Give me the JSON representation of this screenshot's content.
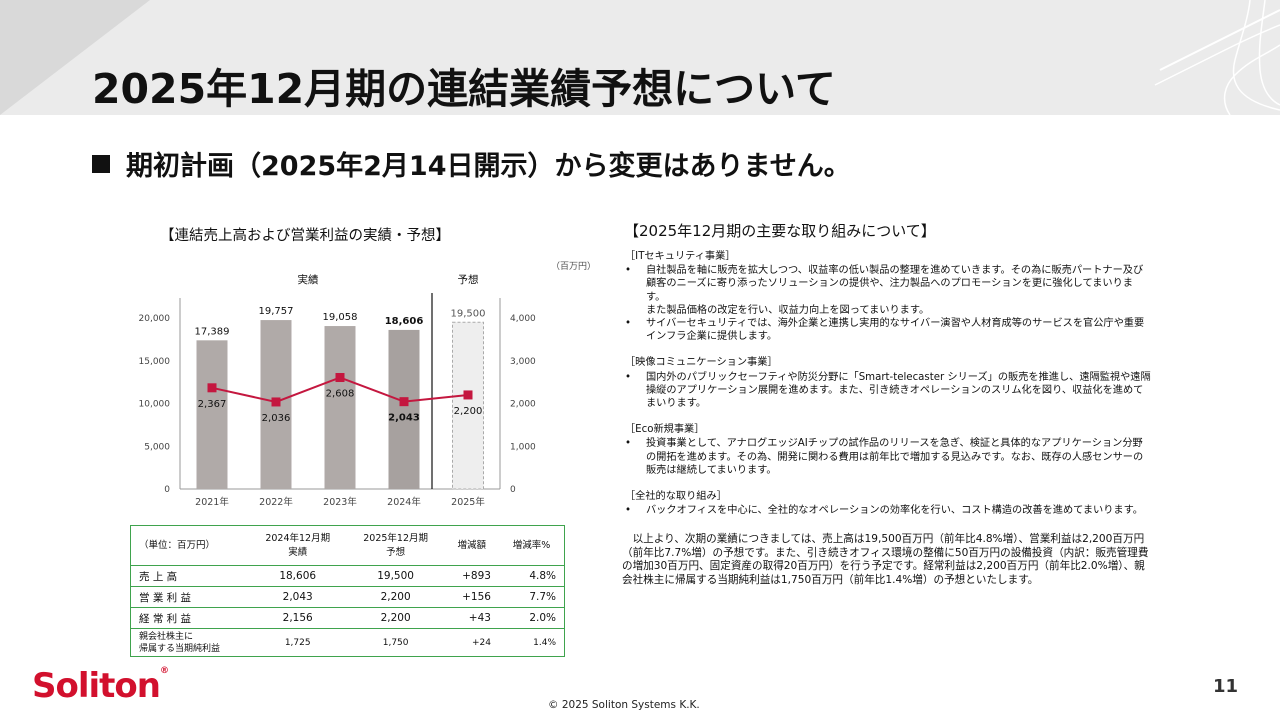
{
  "title": "2025年12月期の連結業績予想について",
  "lead": "期初計画（2025年2月14日開示）から変更はありません。",
  "chart_data": {
    "type": "bar",
    "title": "【連結売上高および営業利益の実績・予想】",
    "unit": "（百万円）",
    "group_labels": [
      "実績",
      "予想"
    ],
    "categories": [
      "2021年",
      "2022年",
      "2023年",
      "2024年",
      "2025年"
    ],
    "series": [
      {
        "name": "売上高",
        "type": "bar",
        "values": [
          17389,
          19757,
          19058,
          18606,
          19500
        ],
        "labels": [
          "17,389",
          "19,757",
          "19,058",
          "18,606",
          "19,500"
        ]
      },
      {
        "name": "営業利益",
        "type": "line",
        "values": [
          2367,
          2036,
          2608,
          2043,
          2200
        ],
        "labels": [
          "2,367",
          "2,036",
          "2,608",
          "2,043",
          "2,200"
        ]
      }
    ],
    "left_ticks": [
      "0",
      "5,000",
      "10,000",
      "15,000",
      "20,000"
    ],
    "right_ticks": [
      "0",
      "1,000",
      "2,000",
      "3,000",
      "4,000"
    ],
    "ylim": [
      0,
      20000
    ],
    "y2lim": [
      0,
      4000
    ],
    "colors": {
      "bar": "#b0aaa8",
      "bar_2024": "#a7a19f",
      "line": "#c4173f"
    }
  },
  "table": {
    "headers": [
      "（単位：百万円）",
      "2024年12月期\n実績",
      "2025年12月期\n予想",
      "増減額",
      "増減率%"
    ],
    "rows": [
      [
        "売 上 高",
        "18,606",
        "19,500",
        "+893",
        "4.8%"
      ],
      [
        "営 業 利 益",
        "2,043",
        "2,200",
        "+156",
        "7.7%"
      ],
      [
        "経 常 利 益",
        "2,156",
        "2,200",
        "+43",
        "2.0%"
      ],
      [
        "親会社株主に\n帰属する当期純利益",
        "1,725",
        "1,750",
        "+24",
        "1.4%"
      ]
    ]
  },
  "initiatives": {
    "title": "【2025年12月期の主要な取り組みについて】",
    "sections": [
      {
        "heading": "［ITセキュリティ事業］",
        "items": [
          {
            "text": "自社製品を軸に販売を拡大しつつ、収益率の低い製品の整理を進めていきます。その為に販売パートナー及び顧客のニーズに寄り添ったソリューションの提供や、注力製品へのプロモーションを更に強化してまいります。",
            "sub": "また製品価格の改定を行い、収益力向上を図ってまいります。"
          },
          {
            "text": "サイバーセキュリティでは、海外企業と連携し実用的なサイバー演習や人材育成等のサービスを官公庁や重要インフラ企業に提供します。",
            "sub": ""
          }
        ]
      },
      {
        "heading": "［映像コミュニケーション事業］",
        "items": [
          {
            "text": "国内外のパブリックセーフティや防災分野に「Smart-telecaster シリーズ」の販売を推進し、遠隔監視や遠隔操縦のアプリケーション展開を進めます。また、引き続きオペレーションのスリム化を図り、収益化を進めてまいります。",
            "sub": ""
          }
        ]
      },
      {
        "heading": "［Eco新規事業］",
        "items": [
          {
            "text": "投資事業として、アナログエッジAIチップの試作品のリリースを急ぎ、検証と具体的なアプリケーション分野の開拓を進めます。その為、開発に関わる費用は前年比で増加する見込みです。なお、既存の人感センサーの販売は継続してまいります。",
            "sub": ""
          }
        ]
      },
      {
        "heading": "［全社的な取り組み］",
        "items": [
          {
            "text": "バックオフィスを中心に、全社的なオペレーションの効率化を行い、コスト構造の改善を進めてまいります。",
            "sub": ""
          }
        ]
      }
    ],
    "summary": "以上より、次期の業績につきましては、売上高は19,500百万円（前年比4.8%増）、営業利益は2,200百万円（前年比7.7%増）の予想です。また、引き続きオフィス環境の整備に50百万円の設備投資（内訳：販売管理費の増加30百万円、固定資産の取得20百万円）を行う予定です。経常利益は2,200百万円（前年比2.0%増）、親会社株主に帰属する当期純利益は1,750百万円（前年比1.4%増）の予想といたします。"
  },
  "footer": {
    "logo_text": "Soliton",
    "logo_mark": "®",
    "copyright": "© 2025 Soliton Systems K.K.",
    "page_number": "11"
  }
}
